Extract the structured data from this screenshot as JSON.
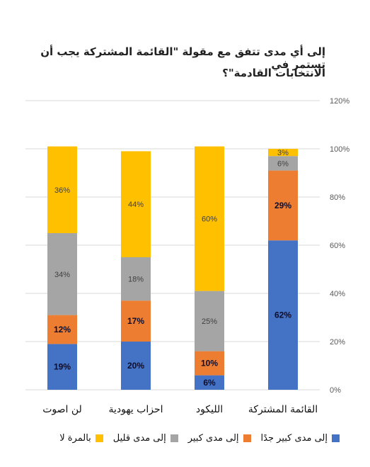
{
  "chart_data": {
    "type": "bar",
    "stacked": true,
    "title_lines": [
      "إلى أي مدى تتفق مع مقولة \"القائمة المشتركة يجب أن تستمر في",
      "الانتخابات القادمة\"؟"
    ],
    "categories": [
      "القائمة المشتركة",
      "الليكود",
      "احزاب يهودية",
      "لن اصوت"
    ],
    "series": [
      {
        "name": "إلى مدى كبير جدًا",
        "color": "#4472C4",
        "values": [
          62,
          6,
          20,
          19
        ],
        "labels": [
          "62%",
          "6%",
          "20%",
          "19%"
        ]
      },
      {
        "name": "إلى مدى كبير",
        "color": "#ED7D31",
        "values": [
          29,
          10,
          17,
          12
        ],
        "labels": [
          "29%",
          "10%",
          "17%",
          "12%"
        ]
      },
      {
        "name": "إلى مدى قليل",
        "color": "#A5A5A5",
        "values": [
          6,
          25,
          18,
          34
        ],
        "labels": [
          "6%",
          "25%",
          "18%",
          "34%"
        ]
      },
      {
        "name": "بالمرة لا",
        "color": "#FFC000",
        "values": [
          3,
          60,
          44,
          36
        ],
        "labels": [
          "3%",
          "60%",
          "44%",
          "36%"
        ]
      }
    ],
    "y_ticks": [
      "0%",
      "20%",
      "40%",
      "60%",
      "80%",
      "100%",
      "120%"
    ],
    "ylim": [
      0,
      120
    ],
    "y_axis_side": "right",
    "legend_position": "bottom",
    "grid": true
  }
}
